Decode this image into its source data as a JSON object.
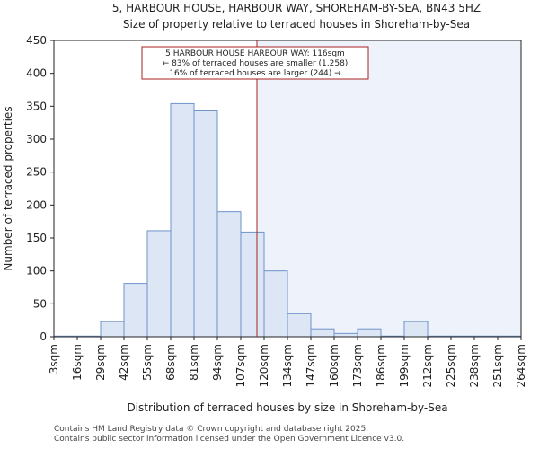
{
  "chart_data": {
    "type": "bar",
    "title": "5, HARBOUR HOUSE, HARBOUR WAY, SHOREHAM-BY-SEA, BN43 5HZ",
    "subtitle": "Size of property relative to terraced houses in Shoreham-by-Sea",
    "xlabel": "Distribution of terraced houses by size in Shoreham-by-Sea",
    "ylabel": "Number of terraced properties",
    "ylim": [
      0,
      450
    ],
    "yticks": [
      "0",
      "50",
      "100",
      "150",
      "200",
      "250",
      "300",
      "350",
      "400",
      "450"
    ],
    "bin_edges": [
      3,
      16,
      29,
      42,
      55,
      68,
      81,
      94,
      107,
      120,
      134,
      147,
      160,
      173,
      186,
      199,
      212,
      225,
      238,
      251,
      264
    ],
    "xtick_labels": [
      "3sqm",
      "16sqm",
      "29sqm",
      "42sqm",
      "55sqm",
      "68sqm",
      "81sqm",
      "94sqm",
      "107sqm",
      "120sqm",
      "134sqm",
      "147sqm",
      "160sqm",
      "173sqm",
      "186sqm",
      "199sqm",
      "212sqm",
      "225sqm",
      "238sqm",
      "251sqm",
      "264sqm"
    ],
    "values": [
      1,
      1,
      23,
      81,
      161,
      354,
      343,
      190,
      159,
      100,
      35,
      12,
      5,
      12,
      1,
      23,
      1,
      1,
      1,
      1
    ],
    "bar_color": "#dce6f5",
    "bar_edge_color": "#6f93c9",
    "highlight_color": "#eef2fb",
    "marker_value": 116,
    "marker_color": "#aa2222",
    "annotation": {
      "line1": "5 HARBOUR HOUSE HARBOUR WAY: 116sqm",
      "line2": "← 83% of terraced houses are smaller (1,258)",
      "line3": "16% of terraced houses are larger (244) →"
    }
  },
  "footer": {
    "line1": "Contains HM Land Registry data © Crown copyright and database right 2025.",
    "line2": "Contains public sector information licensed under the Open Government Licence v3.0."
  }
}
